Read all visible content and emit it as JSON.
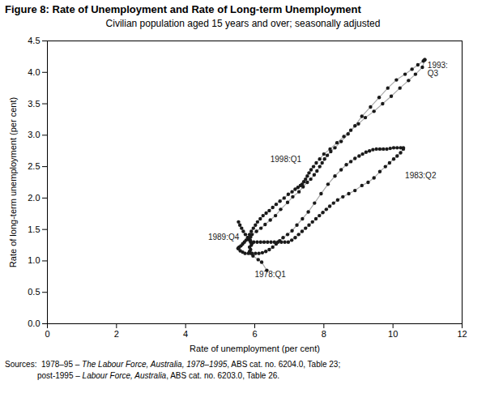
{
  "chart_data": {
    "type": "line",
    "title": "Figure 8: Rate of Unemployment and Rate of Long-term Unemployment",
    "subtitle": "Civilian population aged 15 years and over; seasonally adjusted",
    "xlabel": "Rate of unemployment (per cent)",
    "ylabel": "Rate of long-term unemployment (per cent)",
    "xlim": [
      0,
      12
    ],
    "ylim": [
      0,
      4.5
    ],
    "xticks": [
      0,
      2,
      4,
      6,
      8,
      10,
      12
    ],
    "yticks": [
      {
        "value": 0,
        "label": "0.0"
      },
      0.5,
      {
        "value": 1,
        "label": "1.0"
      },
      1.5,
      {
        "value": 2,
        "label": "2.0"
      },
      2.5,
      {
        "value": 3,
        "label": "3.0"
      },
      3.5,
      {
        "value": 4,
        "label": "4.0"
      },
      4.5
    ],
    "grid": false,
    "series": [
      {
        "type": "line",
        "color": "#aaaaaa",
        "x": [
          6.35,
          6.2,
          6.1,
          5.95,
          5.9,
          5.85,
          5.88,
          5.85,
          5.9,
          5.92,
          5.88,
          5.85,
          5.82,
          5.88,
          5.92,
          6.05,
          6.18,
          6.3,
          6.45,
          6.6,
          6.75,
          6.95,
          7.1,
          7.28,
          7.4,
          7.52,
          7.62,
          7.72,
          7.8,
          7.88,
          7.95,
          8.02,
          8.1,
          8.2,
          8.32,
          8.5,
          8.7,
          8.9,
          9.1,
          9.35,
          9.6,
          9.85,
          10.1,
          10.35,
          10.55,
          10.72,
          10.88,
          10.92
        ],
        "values": [
          0.85,
          0.98,
          1.02,
          1.08,
          1.12,
          1.15,
          1.18,
          1.22,
          1.25,
          1.28,
          1.3,
          1.33,
          1.35,
          1.38,
          1.42,
          1.47,
          1.52,
          1.58,
          1.65,
          1.72,
          1.82,
          1.93,
          2.02,
          2.1,
          2.18,
          2.25,
          2.3,
          2.37,
          2.43,
          2.5,
          2.56,
          2.62,
          2.68,
          2.74,
          2.8,
          2.9,
          3.02,
          3.15,
          3.3,
          3.45,
          3.6,
          3.75,
          3.88,
          3.97,
          4.05,
          4.12,
          4.18,
          4.2
        ]
      },
      {
        "type": "line",
        "color": "#aaaaaa",
        "x": [
          10.92,
          10.85,
          10.65,
          10.45,
          10.2,
          9.95,
          9.7,
          9.45,
          9.2,
          9.0,
          8.78,
          8.58,
          8.38,
          8.18,
          8.0,
          7.88,
          7.78,
          7.7,
          7.63,
          7.57,
          7.52,
          7.47,
          7.42,
          7.37,
          7.32,
          7.25,
          7.17,
          7.08,
          6.97,
          6.85,
          6.73,
          6.62,
          6.52,
          6.42,
          6.33,
          6.24,
          6.16,
          6.08,
          6.02,
          5.96,
          5.9,
          5.85,
          5.8,
          5.75,
          5.7,
          5.65,
          5.6,
          5.55,
          5.52
        ],
        "values": [
          4.2,
          4.08,
          3.97,
          3.87,
          3.75,
          3.62,
          3.5,
          3.38,
          3.28,
          3.18,
          3.08,
          2.98,
          2.88,
          2.78,
          2.7,
          2.62,
          2.56,
          2.5,
          2.45,
          2.4,
          2.35,
          2.3,
          2.26,
          2.22,
          2.2,
          2.17,
          2.14,
          2.1,
          2.06,
          2.0,
          1.95,
          1.9,
          1.85,
          1.8,
          1.76,
          1.72,
          1.67,
          1.62,
          1.57,
          1.52,
          1.47,
          1.42,
          1.37,
          1.33,
          1.3,
          1.27,
          1.24,
          1.22,
          1.2
        ]
      },
      {
        "type": "line",
        "color": "#aaaaaa",
        "x": [
          5.52,
          5.58,
          5.65,
          5.72,
          5.82,
          5.92,
          6.02,
          6.12,
          6.22,
          6.32,
          6.42,
          6.52,
          6.62,
          6.72,
          6.82,
          6.95,
          7.08,
          7.22,
          7.38,
          7.55,
          7.73,
          7.92,
          8.12,
          8.32,
          8.5,
          8.65,
          8.78,
          8.9,
          9.02,
          9.12,
          9.22,
          9.32,
          9.42,
          9.52,
          9.62,
          9.72,
          9.82,
          9.92,
          10.02,
          10.12,
          10.22,
          10.3,
          10.3,
          10.22,
          10.12,
          10.02,
          9.9,
          9.78,
          9.62,
          9.45,
          9.28,
          9.1,
          8.9,
          8.72,
          8.55,
          8.4,
          8.28,
          8.17,
          8.07,
          7.97,
          7.87,
          7.77,
          7.67,
          7.57,
          7.47,
          7.37,
          7.27,
          7.17,
          7.07,
          6.97,
          6.87,
          6.77,
          6.67,
          6.57,
          6.47,
          6.37,
          6.27,
          6.17,
          6.07,
          5.97,
          5.87,
          5.8,
          5.73,
          5.67,
          5.62,
          5.57,
          5.53
        ],
        "values": [
          1.2,
          1.16,
          1.14,
          1.12,
          1.12,
          1.12,
          1.12,
          1.12,
          1.13,
          1.15,
          1.18,
          1.22,
          1.27,
          1.32,
          1.37,
          1.42,
          1.48,
          1.57,
          1.67,
          1.78,
          1.92,
          2.07,
          2.22,
          2.35,
          2.45,
          2.53,
          2.58,
          2.63,
          2.67,
          2.7,
          2.73,
          2.75,
          2.77,
          2.78,
          2.78,
          2.78,
          2.78,
          2.79,
          2.8,
          2.8,
          2.8,
          2.8,
          2.78,
          2.72,
          2.67,
          2.62,
          2.56,
          2.5,
          2.42,
          2.32,
          2.25,
          2.2,
          2.12,
          2.07,
          2.02,
          1.97,
          1.92,
          1.87,
          1.82,
          1.77,
          1.72,
          1.67,
          1.62,
          1.57,
          1.52,
          1.47,
          1.42,
          1.37,
          1.33,
          1.3,
          1.3,
          1.3,
          1.3,
          1.3,
          1.3,
          1.3,
          1.3,
          1.3,
          1.3,
          1.3,
          1.33,
          1.37,
          1.42,
          1.47,
          1.52,
          1.57,
          1.62
        ]
      },
      {
        "type": "scatter",
        "color": "#1a1a1a",
        "x": [
          6.35,
          6.2,
          6.1,
          5.95,
          5.9,
          5.85,
          5.88,
          5.85,
          5.9,
          5.92,
          5.88,
          5.85,
          5.82,
          5.88,
          5.92,
          6.05,
          6.18,
          6.3,
          6.45,
          6.6,
          6.75,
          6.95,
          7.1,
          7.28,
          7.4,
          7.52,
          7.62,
          7.72,
          7.8,
          7.88,
          7.95,
          8.02,
          8.1,
          8.2,
          8.32,
          8.5,
          8.7,
          8.9,
          9.1,
          9.35,
          9.6,
          9.85,
          10.1,
          10.35,
          10.55,
          10.72,
          10.88,
          10.92,
          10.92,
          10.85,
          10.65,
          10.45,
          10.2,
          9.95,
          9.7,
          9.45,
          9.2,
          9.0,
          8.78,
          8.58,
          8.38,
          8.18,
          8.0,
          7.88,
          7.78,
          7.7,
          7.63,
          7.57,
          7.52,
          7.47,
          7.42,
          7.37,
          7.32,
          7.25,
          7.17,
          7.08,
          6.97,
          6.85,
          6.73,
          6.62,
          6.52,
          6.42,
          6.33,
          6.24,
          6.16,
          6.08,
          6.02,
          5.96,
          5.9,
          5.85,
          5.8,
          5.75,
          5.7,
          5.65,
          5.6,
          5.55,
          5.52,
          5.52,
          5.58,
          5.65,
          5.72,
          5.82,
          5.92,
          6.02,
          6.12,
          6.22,
          6.32,
          6.42,
          6.52,
          6.62,
          6.72,
          6.82,
          6.95,
          7.08,
          7.22,
          7.38,
          7.55,
          7.73,
          7.92,
          8.12,
          8.32,
          8.5,
          8.65,
          8.78,
          8.9,
          9.02,
          9.12,
          9.22,
          9.32,
          9.42,
          9.52,
          9.62,
          9.72,
          9.82,
          9.92,
          10.02,
          10.12,
          10.22,
          10.3,
          10.3,
          10.22,
          10.12,
          10.02,
          9.9,
          9.78,
          9.62,
          9.45,
          9.28,
          9.1,
          8.9,
          8.72,
          8.55,
          8.4,
          8.28,
          8.17,
          8.07,
          7.97,
          7.87,
          7.77,
          7.67,
          7.57,
          7.47,
          7.37,
          7.27,
          7.17,
          7.07,
          6.97,
          6.87,
          6.77,
          6.67,
          6.57,
          6.47,
          6.37,
          6.27,
          6.17,
          6.07,
          5.97,
          5.87,
          5.8,
          5.73,
          5.67,
          5.62,
          5.57,
          5.53
        ],
        "values": [
          0.85,
          0.98,
          1.02,
          1.08,
          1.12,
          1.15,
          1.18,
          1.22,
          1.25,
          1.28,
          1.3,
          1.33,
          1.35,
          1.38,
          1.42,
          1.47,
          1.52,
          1.58,
          1.65,
          1.72,
          1.82,
          1.93,
          2.02,
          2.1,
          2.18,
          2.25,
          2.3,
          2.37,
          2.43,
          2.5,
          2.56,
          2.62,
          2.68,
          2.74,
          2.8,
          2.9,
          3.02,
          3.15,
          3.3,
          3.45,
          3.6,
          3.75,
          3.88,
          3.97,
          4.05,
          4.12,
          4.18,
          4.2,
          4.2,
          4.08,
          3.97,
          3.87,
          3.75,
          3.62,
          3.5,
          3.38,
          3.28,
          3.18,
          3.08,
          2.98,
          2.88,
          2.78,
          2.7,
          2.62,
          2.56,
          2.5,
          2.45,
          2.4,
          2.35,
          2.3,
          2.26,
          2.22,
          2.2,
          2.17,
          2.14,
          2.1,
          2.06,
          2.0,
          1.95,
          1.9,
          1.85,
          1.8,
          1.76,
          1.72,
          1.67,
          1.62,
          1.57,
          1.52,
          1.47,
          1.42,
          1.37,
          1.33,
          1.3,
          1.27,
          1.24,
          1.22,
          1.2,
          1.2,
          1.16,
          1.14,
          1.12,
          1.12,
          1.12,
          1.12,
          1.12,
          1.13,
          1.15,
          1.18,
          1.22,
          1.27,
          1.32,
          1.37,
          1.42,
          1.48,
          1.57,
          1.67,
          1.78,
          1.92,
          2.07,
          2.22,
          2.35,
          2.45,
          2.53,
          2.58,
          2.63,
          2.67,
          2.7,
          2.73,
          2.75,
          2.77,
          2.78,
          2.78,
          2.78,
          2.78,
          2.79,
          2.8,
          2.8,
          2.8,
          2.8,
          2.78,
          2.72,
          2.67,
          2.62,
          2.56,
          2.5,
          2.42,
          2.32,
          2.25,
          2.2,
          2.12,
          2.07,
          2.02,
          1.97,
          1.92,
          1.87,
          1.82,
          1.77,
          1.72,
          1.67,
          1.62,
          1.57,
          1.52,
          1.47,
          1.42,
          1.37,
          1.33,
          1.3,
          1.3,
          1.3,
          1.3,
          1.3,
          1.3,
          1.3,
          1.3,
          1.3,
          1.3,
          1.3,
          1.33,
          1.37,
          1.42,
          1.47,
          1.52,
          1.57,
          1.62
        ]
      }
    ],
    "annotations": [
      {
        "text": "1993:\nQ3",
        "x": 11.0,
        "y": 4.05,
        "color": "#1a1a1a"
      },
      {
        "text": "1998:Q1",
        "x": 6.45,
        "y": 2.62,
        "color": "#1a1a1a"
      },
      {
        "text": "1983:Q2",
        "x": 10.35,
        "y": 2.35,
        "color": "#1a1a1a"
      },
      {
        "text": "1989:Q4",
        "x": 4.65,
        "y": 1.38,
        "color": "#1a1a1a"
      },
      {
        "text": "1978:Q1",
        "x": 6.0,
        "y": 0.78,
        "color": "#1a1a1a"
      }
    ],
    "source": [
      [
        "Sources:  1978–95 – ",
        "The Labour Force, Australia, 1978–1995",
        ", ABS cat. no. 6204.0, Table 23;"
      ],
      [
        "post-1995 – ",
        "Labour Force, Australia",
        ", ABS cat. no. 6203.0, Table 26."
      ]
    ]
  }
}
